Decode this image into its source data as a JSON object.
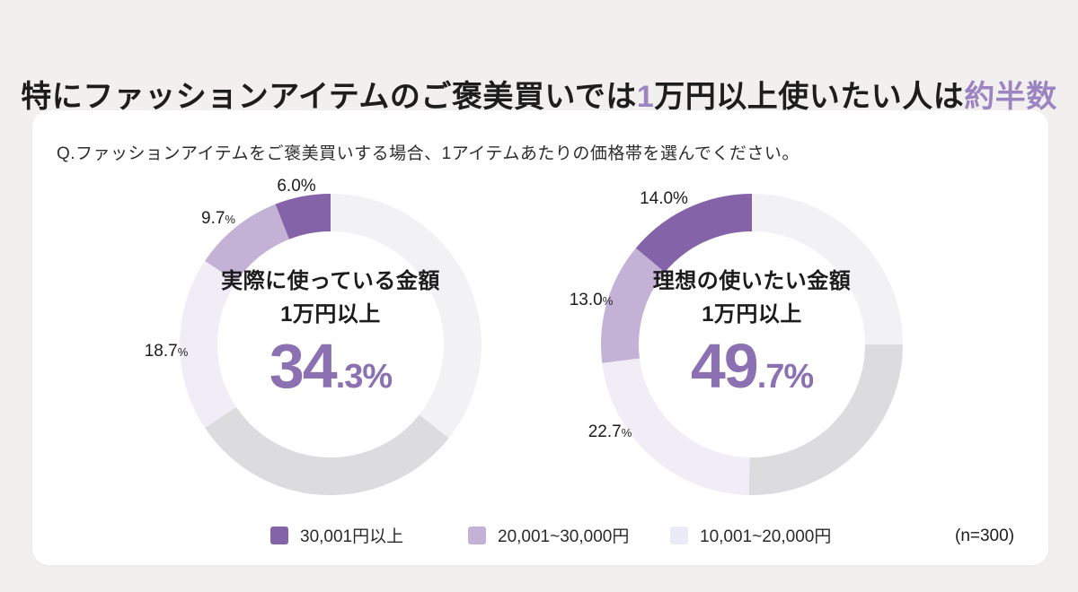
{
  "title": {
    "part1": "特にファッションアイテムのご褒美買いでは",
    "accent1": "1",
    "part2": "万円以上使いたい人は",
    "accent2": "約半数"
  },
  "question": "Q.ファッションアイテムをご褒美買いする場合、1アイテムあたりの価格帯を選んでください。",
  "note": "(n=300)",
  "colors": {
    "page_bg": "#f1f0ef",
    "card_bg": "#ffffff",
    "title_text": "#1d1d1d",
    "title_accent": "#9b84c1",
    "big_number_purple": "#8b70b2",
    "seg_dark_purple": "#8563a8",
    "seg_mid_purple": "#c4b1d6",
    "seg_pale_lavender": "#f0edf6",
    "seg_gray_light": "#f2f1f3",
    "seg_gray_dark": "#dcdbdd"
  },
  "legend": [
    {
      "label": "30,001円以上",
      "color": "#8463a9"
    },
    {
      "label": "20,001~30,000円",
      "color": "#c4b1d6"
    },
    {
      "label": "10,001~20,000円",
      "color": "#e9ebf7"
    }
  ],
  "chart_data": [
    {
      "type": "donut",
      "name": "actual-spend",
      "center_title": "実際に使っている金額",
      "center_subtitle": "1万円以上",
      "center_value_main": "34",
      "center_value_rest": ".3%",
      "start_angle": "12-oclock",
      "direction": "clockwise",
      "callouts": {
        "top": "6.0%",
        "mid_num": "9.7",
        "mid_pct": "%",
        "low_num": "18.7",
        "low_pct": "%"
      },
      "segments": [
        {
          "category": "unlabeled",
          "value": 35.7,
          "estimated": true,
          "color": "#f2f1f3"
        },
        {
          "category": "unlabeled",
          "value": 30.0,
          "estimated": true,
          "color": "#dcdbdd"
        },
        {
          "category": "10,001~20,000円",
          "value": 18.7,
          "color": "#f0edf6"
        },
        {
          "category": "20,001~30,000円",
          "value": 9.7,
          "color": "#c4b1d6"
        },
        {
          "category": "30,001円以上",
          "value": 6.0,
          "color": "#8563a8"
        }
      ]
    },
    {
      "type": "donut",
      "name": "ideal-spend",
      "center_title": "理想の使いたい金額",
      "center_subtitle": "1万円以上",
      "center_value_main": "49",
      "center_value_rest": ".7%",
      "start_angle": "12-oclock",
      "direction": "clockwise",
      "callouts": {
        "top": "14.0%",
        "mid_num": "13.0",
        "mid_pct": "%",
        "low_num": "22.7",
        "low_pct": "%"
      },
      "segments": [
        {
          "category": "unlabeled",
          "value": 25.0,
          "estimated": true,
          "color": "#f2f1f3"
        },
        {
          "category": "unlabeled",
          "value": 25.3,
          "estimated": true,
          "color": "#dcdbdd"
        },
        {
          "category": "10,001~20,000円",
          "value": 22.7,
          "color": "#f0edf6"
        },
        {
          "category": "20,001~30,000円",
          "value": 13.0,
          "color": "#c4b1d6"
        },
        {
          "category": "30,001円以上",
          "value": 14.0,
          "color": "#8563a8"
        }
      ]
    }
  ]
}
